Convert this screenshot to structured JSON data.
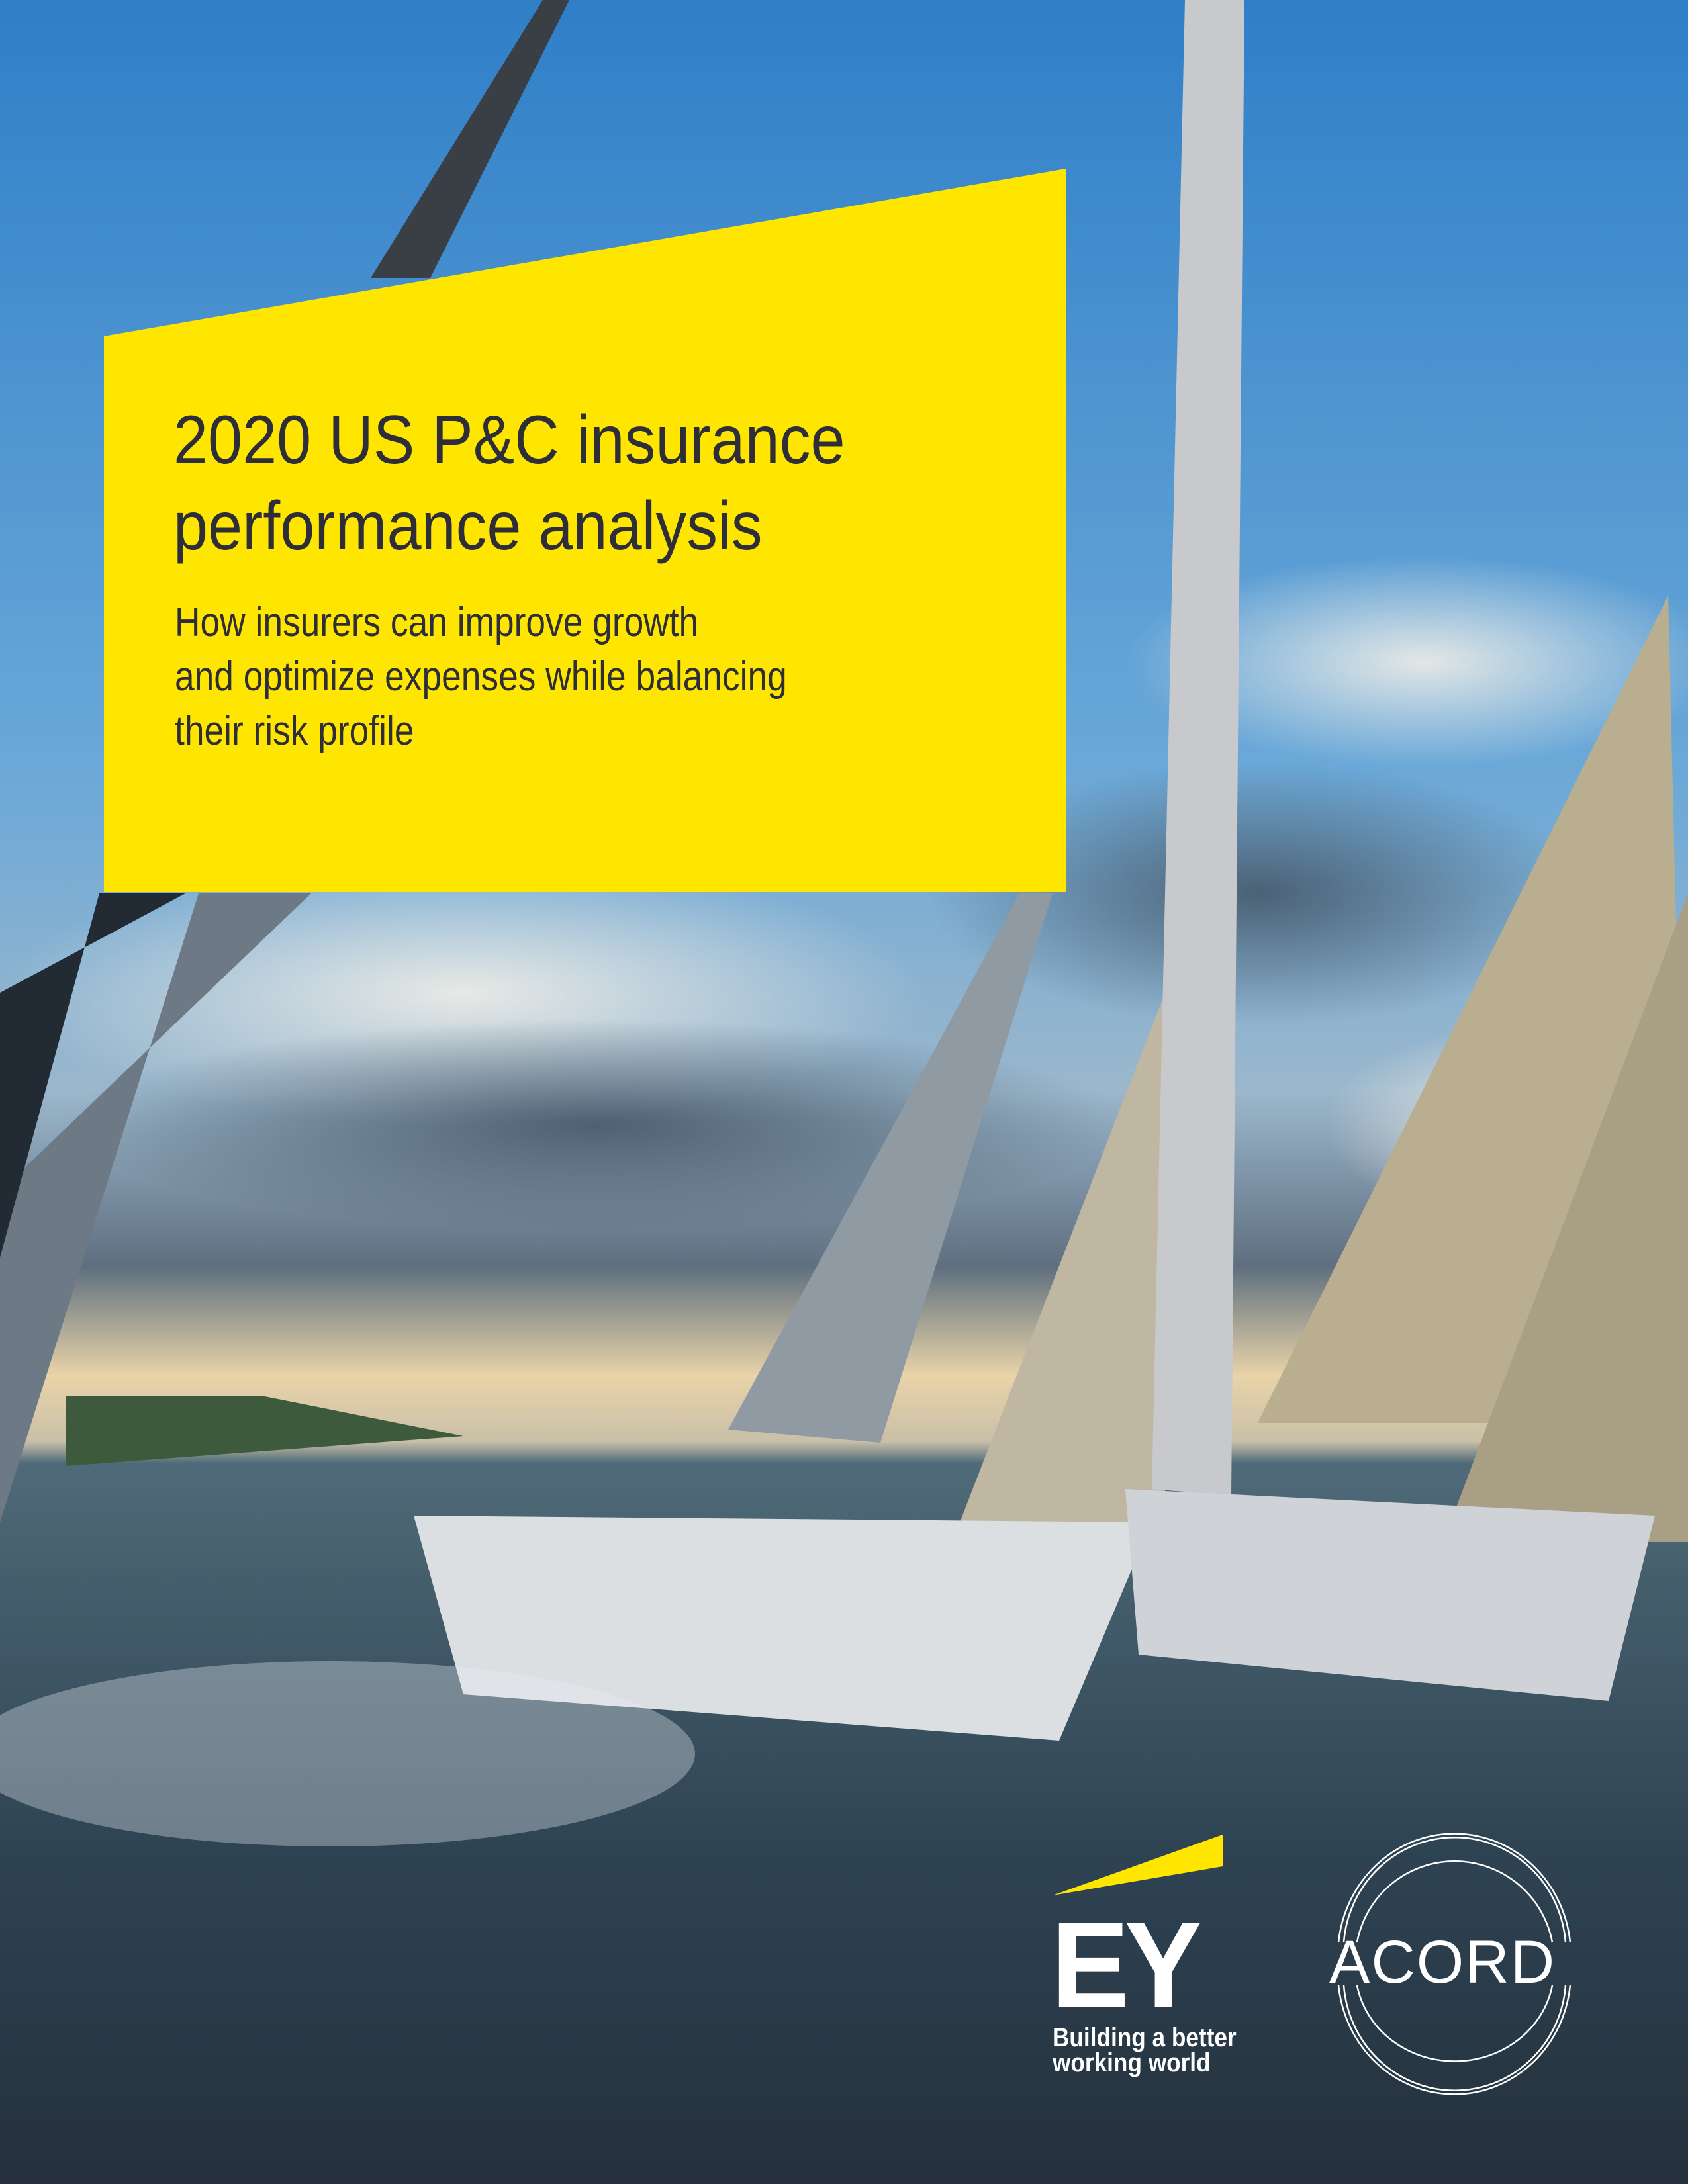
{
  "cover": {
    "title_lines": [
      "2020 US P&C insurance",
      "performance analysis"
    ],
    "subtitle_lines": [
      "How insurers can improve growth",
      "and optimize expenses while balancing",
      "their risk profile"
    ],
    "accent_color": "#FFE600",
    "text_color": "#2E2E38"
  },
  "logos": {
    "ey": {
      "wordmark": "EY",
      "tagline_lines": [
        "Building a better",
        "working world"
      ]
    },
    "acord": {
      "wordmark": "ACORD"
    }
  }
}
